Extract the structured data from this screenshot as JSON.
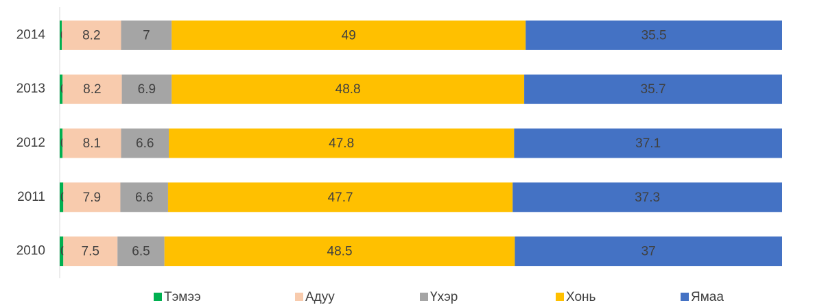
{
  "chart_data": {
    "type": "stacked_barh",
    "categories": [
      "2014",
      "2013",
      "2012",
      "2011",
      "2010"
    ],
    "series": [
      {
        "name": "Тэмээ",
        "color": "#00b050",
        "values": [
          0.3,
          0.4,
          0.4,
          0.5,
          0.5
        ]
      },
      {
        "name": "Адуу",
        "color": "#f8cbad",
        "values": [
          8.2,
          8.2,
          8.1,
          7.9,
          7.5
        ]
      },
      {
        "name": "Үхэр",
        "color": "#a5a5a5",
        "values": [
          7,
          6.9,
          6.6,
          6.6,
          6.5
        ]
      },
      {
        "name": "Хонь",
        "color": "#ffc000",
        "values": [
          49,
          48.8,
          47.8,
          47.7,
          48.5
        ]
      },
      {
        "name": "Ямаа",
        "color": "#4472c4",
        "values": [
          35.5,
          35.7,
          37.1,
          37.3,
          37
        ]
      }
    ],
    "legend": "bottom"
  }
}
